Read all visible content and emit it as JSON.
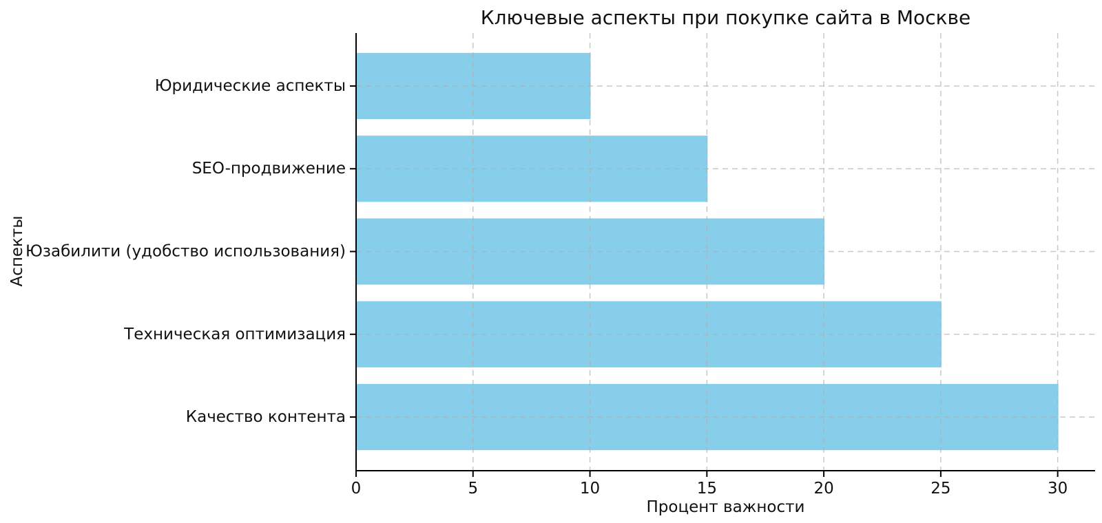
{
  "chart_data": {
    "type": "bar",
    "orientation": "horizontal",
    "title": "Ключевые аспекты при покупке сайта в Москве",
    "xlabel": "Процент важности",
    "ylabel": "Аспекты",
    "categories": [
      "Юридические аспекты",
      "SEO-продвижение",
      "Юзабилити (удобство использования)",
      "Техническая оптимизация",
      "Качество контента"
    ],
    "values": [
      10,
      15,
      20,
      25,
      30
    ],
    "categories_order": "top-to-bottom",
    "xticks": [
      0,
      5,
      10,
      15,
      20,
      25,
      30
    ],
    "xlim": [
      0,
      31.6
    ],
    "bar_color": "#87CEEB",
    "grid": {
      "on": true,
      "style": "dashed",
      "color": "#b0b0b0",
      "opacity": 0.7
    },
    "spine_color": "#000000",
    "text_color": "#111111",
    "legend": null
  }
}
